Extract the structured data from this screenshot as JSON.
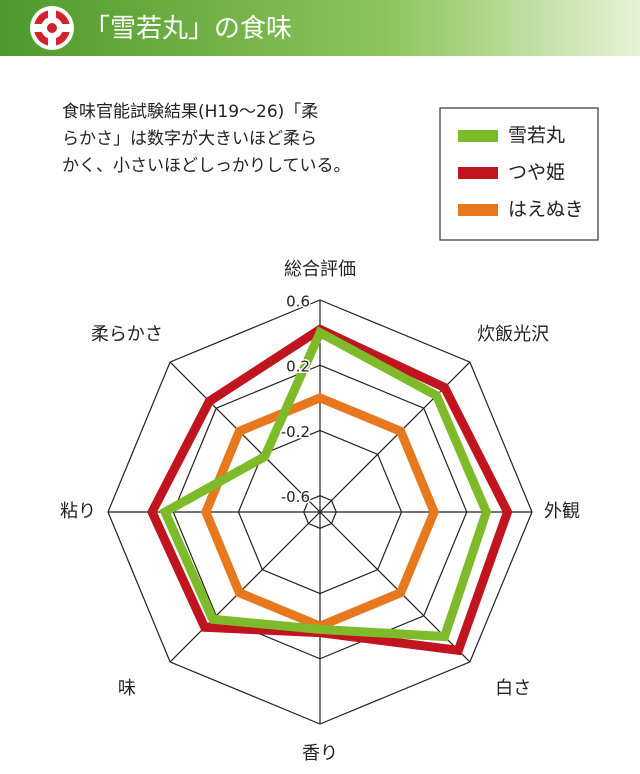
{
  "header": {
    "title": "「雪若丸」の食味"
  },
  "description": [
    "食味官能試験結果(H19～26)「柔",
    "らかさ」は数字が大きいほど柔ら",
    "かく、小さいほどしっかりしている。"
  ],
  "chart_data": {
    "type": "radar",
    "categories": [
      "総合評価",
      "炊飯光沢",
      "外観",
      "白さ",
      "香り",
      "味",
      "粘り",
      "柔らかさ"
    ],
    "rlim": [
      -0.7,
      0.6
    ],
    "rticks": [
      0.6,
      0.2,
      -0.2,
      -0.6
    ],
    "series": [
      {
        "name": "雪若丸",
        "color": "#7dbb2a",
        "values": [
          0.4,
          0.31,
          0.32,
          0.38,
          0.02,
          0.23,
          0.25,
          -0.22
        ]
      },
      {
        "name": "つや姫",
        "color": "#c0141e",
        "values": [
          0.42,
          0.38,
          0.45,
          0.5,
          0.04,
          0.3,
          0.33,
          0.26
        ]
      },
      {
        "name": "はえぬき",
        "color": "#e8781e",
        "values": [
          0,
          0,
          0,
          0,
          0,
          0,
          0,
          0
        ]
      }
    ],
    "legend": "upper right"
  }
}
